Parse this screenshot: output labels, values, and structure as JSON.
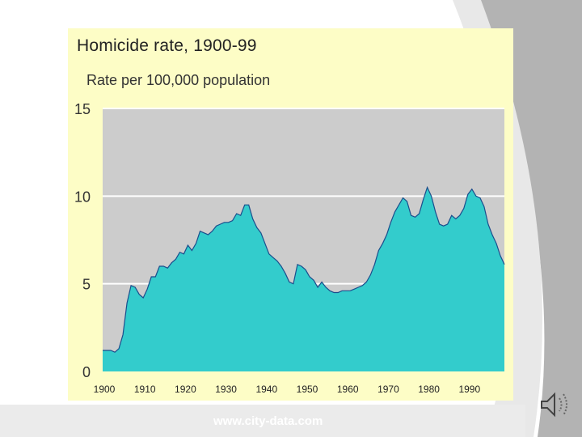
{
  "slide": {
    "footer_text": "www.city-data.com",
    "colors": {
      "background": "#ffffff",
      "swoosh_dark": "#b3b3b3",
      "swoosh_light": "#e6e6e6",
      "footer_bar": "#ebebeb"
    },
    "speaker_icon": "speaker-icon"
  },
  "chart_data": {
    "type": "area",
    "title": "Homicide rate, 1900-99",
    "subtitle": "Rate per 100,000 population",
    "xlabel": "",
    "ylabel": "",
    "xlim": [
      1900,
      1999
    ],
    "ylim": [
      0,
      15
    ],
    "x_ticks": [
      1900,
      1910,
      1920,
      1930,
      1940,
      1950,
      1960,
      1970,
      1980,
      1990
    ],
    "y_ticks": [
      0,
      5,
      10,
      15
    ],
    "grid": true,
    "legend": "none",
    "colors": {
      "fill": "#33cccc",
      "stroke": "#1a4d8c",
      "plot_bg": "#cccccc",
      "panel_bg": "#fdfdc6",
      "grid": "#ffffff"
    },
    "series": [
      {
        "x": [
          1900,
          1901,
          1902,
          1903,
          1904,
          1905,
          1906,
          1907,
          1908,
          1909,
          1910,
          1911,
          1912,
          1913,
          1914,
          1915,
          1916,
          1917,
          1918,
          1919,
          1920,
          1921,
          1922,
          1923,
          1924,
          1925,
          1926,
          1927,
          1928,
          1929,
          1930,
          1931,
          1932,
          1933,
          1934,
          1935,
          1936,
          1937,
          1938,
          1939,
          1940,
          1941,
          1942,
          1943,
          1944,
          1945,
          1946,
          1947,
          1948,
          1949,
          1950,
          1951,
          1952,
          1953,
          1954,
          1955,
          1956,
          1957,
          1958,
          1959,
          1960,
          1961,
          1962,
          1963,
          1964,
          1965,
          1966,
          1967,
          1968,
          1969,
          1970,
          1971,
          1972,
          1973,
          1974,
          1975,
          1976,
          1977,
          1978,
          1979,
          1980,
          1981,
          1982,
          1983,
          1984,
          1985,
          1986,
          1987,
          1988,
          1989,
          1990,
          1991,
          1992,
          1993,
          1994,
          1995,
          1996,
          1997,
          1998,
          1999
        ],
        "values": [
          1.2,
          1.2,
          1.2,
          1.1,
          1.3,
          2.1,
          3.9,
          4.9,
          4.8,
          4.4,
          4.2,
          4.7,
          5.4,
          5.4,
          6.0,
          6.0,
          5.9,
          6.2,
          6.4,
          6.8,
          6.7,
          7.2,
          6.9,
          7.3,
          8.0,
          7.9,
          7.8,
          8.0,
          8.3,
          8.4,
          8.5,
          8.5,
          8.6,
          9.0,
          8.9,
          9.5,
          9.5,
          8.7,
          8.2,
          7.9,
          7.3,
          6.7,
          6.5,
          6.3,
          6.0,
          5.6,
          5.1,
          5.0,
          6.1,
          6.0,
          5.8,
          5.4,
          5.2,
          4.8,
          5.1,
          4.8,
          4.6,
          4.5,
          4.5,
          4.6,
          4.6,
          4.6,
          4.7,
          4.8,
          4.9,
          5.1,
          5.5,
          6.1,
          6.9,
          7.3,
          7.8,
          8.5,
          9.1,
          9.5,
          9.9,
          9.7,
          8.9,
          8.8,
          9.0,
          9.8,
          10.5,
          10.0,
          9.1,
          8.4,
          8.3,
          8.4,
          8.9,
          8.7,
          8.9,
          9.3,
          10.1,
          10.4,
          10.0,
          9.9,
          9.4,
          8.4,
          7.8,
          7.3,
          6.6,
          6.1
        ]
      }
    ]
  }
}
